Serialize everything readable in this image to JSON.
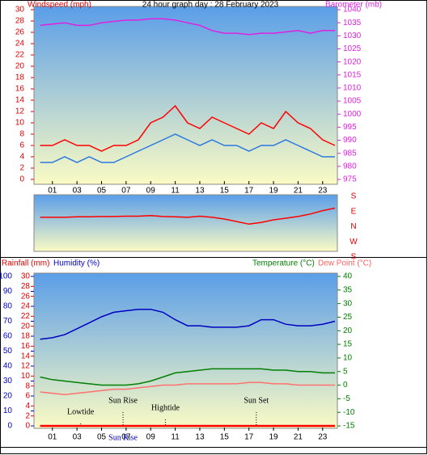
{
  "chart_data": [
    {
      "type": "line",
      "title": "24 hour graph day : 28 February 2023",
      "y_label": "Windspeed (mph)",
      "y2_label": "Barometer (mb)",
      "x": [
        0,
        1,
        2,
        3,
        4,
        5,
        6,
        7,
        8,
        9,
        10,
        11,
        12,
        13,
        14,
        15,
        16,
        17,
        18,
        19,
        20,
        21,
        22,
        23,
        24
      ],
      "xlim": [
        -0.5,
        24.2
      ],
      "xticks": [
        {
          "value": 1,
          "label": "01"
        },
        {
          "value": 3,
          "label": "03"
        },
        {
          "value": 5,
          "label": "05"
        },
        {
          "value": 7,
          "label": "07"
        },
        {
          "value": 9,
          "label": "09"
        },
        11,
        13,
        15,
        17,
        19,
        21,
        23
      ],
      "ylim": [
        0,
        30
      ],
      "yticks": [
        0,
        2,
        4,
        6,
        8,
        10,
        12,
        14,
        16,
        18,
        20,
        22,
        24,
        26,
        28,
        30
      ],
      "y2lim": [
        975,
        1040
      ],
      "y2ticks": [
        975,
        980,
        985,
        990,
        995,
        1000,
        1005,
        1010,
        1015,
        1020,
        1025,
        1030,
        1035,
        1040
      ],
      "series": [
        {
          "name": "Gust",
          "color": "#ff0000",
          "values": [
            6,
            6,
            7,
            6,
            6,
            5,
            6,
            6,
            7,
            10,
            11,
            13,
            10,
            9,
            11,
            10,
            9,
            8,
            10,
            9,
            12,
            10,
            9,
            7,
            6
          ]
        },
        {
          "name": "Average",
          "color": "#2a78e0",
          "values": [
            3,
            3,
            4,
            3,
            4,
            3,
            3,
            4,
            5,
            6,
            7,
            8,
            7,
            6,
            7,
            6,
            6,
            5,
            6,
            6,
            7,
            6,
            5,
            4,
            4
          ]
        },
        {
          "name": "Barometer",
          "color": "#e020e0",
          "axis": "y2",
          "values": [
            1034,
            1034.5,
            1035,
            1034,
            1034,
            1035,
            1035.5,
            1036,
            1036,
            1036.5,
            1036.5,
            1036,
            1035,
            1034,
            1032,
            1031,
            1031,
            1030.5,
            1031,
            1031,
            1031.5,
            1032,
            1031,
            1032,
            1032
          ]
        }
      ]
    },
    {
      "type": "line",
      "x": [
        0,
        1,
        2,
        3,
        4,
        5,
        6,
        7,
        8,
        9,
        10,
        11,
        12,
        13,
        14,
        15,
        16,
        17,
        18,
        19,
        20,
        21,
        22,
        23,
        24
      ],
      "xlim": [
        -0.5,
        24.2
      ],
      "ylim": [
        -147,
        189
      ],
      "yticks": [
        {
          "value": 180,
          "label": "S"
        },
        {
          "value": 90,
          "label": "E"
        },
        {
          "value": 0,
          "label": "N"
        },
        {
          "value": -90,
          "label": "W"
        },
        {
          "value": -180,
          "label": "S"
        }
      ],
      "series": [
        {
          "name": "Wind Direction",
          "color": "#ff0000",
          "values": [
            55,
            55,
            55,
            58,
            58,
            60,
            60,
            62,
            62,
            65,
            60,
            58,
            55,
            62,
            55,
            45,
            30,
            15,
            25,
            40,
            50,
            60,
            75,
            95,
            110
          ]
        }
      ]
    },
    {
      "type": "line",
      "y_label": "Rainfall (mm)",
      "y3_label": "Humidity (%)",
      "y2_label": "Temperature (°C)",
      "y2b_label": "Dew Point (°C)",
      "x": [
        0,
        1,
        2,
        3,
        4,
        5,
        6,
        7,
        8,
        9,
        10,
        11,
        12,
        13,
        14,
        15,
        16,
        17,
        18,
        19,
        20,
        21,
        22,
        23,
        24
      ],
      "xlim": [
        -0.5,
        24.2
      ],
      "xticks": [
        {
          "value": 1,
          "label": "01"
        },
        {
          "value": 3,
          "label": "03"
        },
        {
          "value": 5,
          "label": "05"
        },
        {
          "value": 7,
          "label": "07"
        },
        {
          "value": 9,
          "label": "09"
        },
        11,
        13,
        15,
        17,
        19,
        21,
        23
      ],
      "ylim": [
        0,
        30
      ],
      "yticks": [
        0,
        2,
        4,
        6,
        8,
        10,
        12,
        14,
        16,
        18,
        20,
        22,
        24,
        26,
        28,
        30
      ],
      "y3lim": [
        0,
        100
      ],
      "y3ticks": [
        0,
        10,
        20,
        30,
        40,
        50,
        60,
        70,
        80,
        90,
        100
      ],
      "y2lim": [
        -15,
        40
      ],
      "y2ticks": [
        -15,
        -10,
        -5,
        0,
        5,
        10,
        15,
        20,
        25,
        30,
        35,
        40
      ],
      "series": [
        {
          "name": "Humidity",
          "color": "#0000c0",
          "axis": "y3",
          "values": [
            58,
            59,
            61,
            65,
            69,
            73,
            76,
            77,
            78,
            78,
            76,
            71,
            67,
            67,
            66,
            66,
            66,
            67,
            71,
            71,
            68,
            67,
            67,
            68,
            70
          ]
        },
        {
          "name": "Temperature",
          "color": "#008000",
          "axis": "y2",
          "values": [
            3,
            2,
            1.5,
            1,
            0.5,
            0,
            0,
            0,
            0.5,
            1.5,
            3,
            4.5,
            5,
            5.5,
            6,
            6,
            6,
            6,
            6,
            5.5,
            5.5,
            5,
            5,
            4.5,
            4.5
          ]
        },
        {
          "name": "Dew Point",
          "color": "#ff7070",
          "axis": "y2",
          "values": [
            -2.5,
            -3,
            -3.5,
            -3,
            -2.5,
            -2,
            -1.5,
            -1.5,
            -1,
            -0.5,
            0,
            0,
            0.5,
            0.5,
            0.5,
            0.5,
            0.5,
            1,
            1,
            0.5,
            0.5,
            0,
            0,
            0,
            0
          ]
        },
        {
          "name": "Rainfall",
          "color": "#ff0000",
          "values": [
            0,
            0,
            0,
            0,
            0,
            0,
            0,
            0,
            0,
            0,
            0,
            0,
            0,
            0,
            0,
            0,
            0,
            0,
            0,
            0,
            0,
            0,
            0,
            0,
            0
          ]
        }
      ],
      "annotations": [
        {
          "text": "Lowtide",
          "x": 3.3
        },
        {
          "text": "Sun Rise",
          "x": 6.75
        },
        {
          "text": "Hightide",
          "x": 10.2
        },
        {
          "text": "Sun Set",
          "x": 17.6
        }
      ],
      "x_axis_annotations": [
        {
          "text": "Sun Rise",
          "x": 6.75
        }
      ]
    }
  ]
}
